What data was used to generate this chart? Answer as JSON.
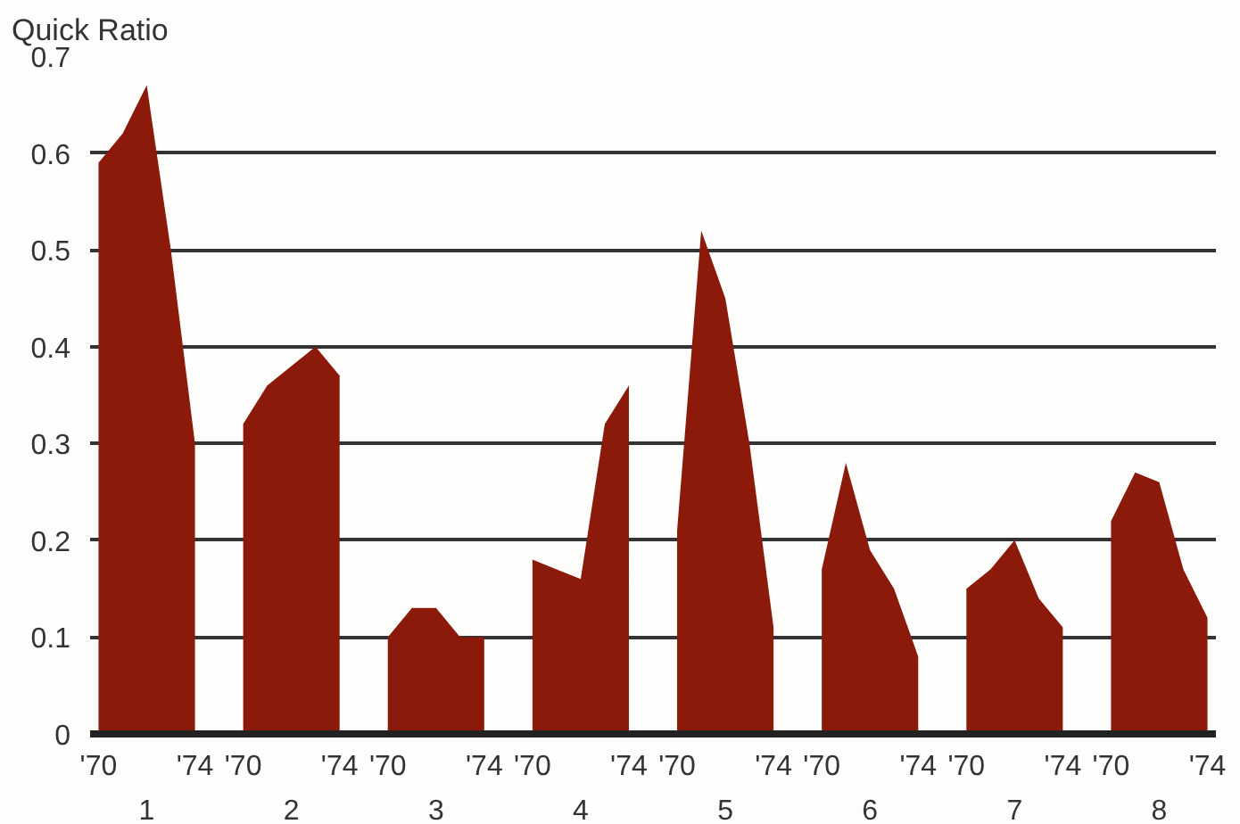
{
  "chart_data": {
    "type": "area",
    "ylabel": "Quick Ratio",
    "categories": [
      "'70",
      null,
      null,
      null,
      "'74",
      "'70",
      null,
      null,
      null,
      "'74",
      "'70",
      null,
      null,
      null,
      "'74",
      "'70",
      null,
      null,
      null,
      "'74",
      "'70",
      null,
      null,
      null,
      "'74",
      "'70",
      null,
      null,
      null,
      "'74",
      "'70",
      null,
      null,
      null,
      "'74",
      "'70",
      null,
      null,
      null,
      "'74"
    ],
    "series": [
      {
        "color": "#8b1a0a",
        "values": [
          0.59,
          0.62,
          0.67,
          0.5,
          0.3,
          null,
          null,
          null,
          null,
          null,
          null,
          null,
          null,
          null,
          null,
          null,
          null,
          null,
          null,
          null,
          null,
          null,
          null,
          null,
          null,
          null,
          null,
          null,
          null,
          null,
          null,
          null,
          null,
          null,
          null,
          null,
          null,
          null,
          null,
          null
        ]
      },
      {
        "color": "#8b1a0a",
        "values": [
          null,
          null,
          null,
          null,
          null,
          0.32,
          0.36,
          0.38,
          0.4,
          0.37,
          null,
          null,
          null,
          null,
          null,
          null,
          null,
          null,
          null,
          null,
          null,
          null,
          null,
          null,
          null,
          null,
          null,
          null,
          null,
          null,
          null,
          null,
          null,
          null,
          null,
          null,
          null,
          null,
          null,
          null
        ]
      },
      {
        "color": "#8b1a0a",
        "values": [
          null,
          null,
          null,
          null,
          null,
          null,
          null,
          null,
          null,
          null,
          0.1,
          0.13,
          0.13,
          0.1,
          0.1,
          null,
          null,
          null,
          null,
          null,
          null,
          null,
          null,
          null,
          null,
          null,
          null,
          null,
          null,
          null,
          null,
          null,
          null,
          null,
          null,
          null,
          null,
          null,
          null,
          null
        ]
      },
      {
        "color": "#8b1a0a",
        "values": [
          null,
          null,
          null,
          null,
          null,
          null,
          null,
          null,
          null,
          null,
          null,
          null,
          null,
          null,
          null,
          0.18,
          0.17,
          0.16,
          0.32,
          0.36,
          null,
          null,
          null,
          null,
          null,
          null,
          null,
          null,
          null,
          null,
          null,
          null,
          null,
          null,
          null,
          null,
          null,
          null,
          null,
          null
        ]
      },
      {
        "color": "#8b1a0a",
        "values": [
          null,
          null,
          null,
          null,
          null,
          null,
          null,
          null,
          null,
          null,
          null,
          null,
          null,
          null,
          null,
          null,
          null,
          null,
          null,
          null,
          0.21,
          0.52,
          0.45,
          0.3,
          0.11,
          null,
          null,
          null,
          null,
          null,
          null,
          null,
          null,
          null,
          null,
          null,
          null,
          null,
          null,
          null
        ]
      },
      {
        "color": "#8b1a0a",
        "values": [
          null,
          null,
          null,
          null,
          null,
          null,
          null,
          null,
          null,
          null,
          null,
          null,
          null,
          null,
          null,
          null,
          null,
          null,
          null,
          null,
          null,
          null,
          null,
          null,
          null,
          0.17,
          0.28,
          0.19,
          0.15,
          0.08,
          null,
          null,
          null,
          null,
          null,
          null,
          null,
          null,
          null,
          null
        ]
      },
      {
        "color": "#8b1a0a",
        "values": [
          null,
          null,
          null,
          null,
          null,
          null,
          null,
          null,
          null,
          null,
          null,
          null,
          null,
          null,
          null,
          null,
          null,
          null,
          null,
          null,
          null,
          null,
          null,
          null,
          null,
          null,
          null,
          null,
          null,
          null,
          0.15,
          0.17,
          0.2,
          0.14,
          0.11,
          null,
          null,
          null,
          null,
          null
        ]
      },
      {
        "color": "#8b1a0a",
        "values": [
          null,
          null,
          null,
          null,
          null,
          null,
          null,
          null,
          null,
          null,
          null,
          null,
          null,
          null,
          null,
          null,
          null,
          null,
          null,
          null,
          null,
          null,
          null,
          null,
          null,
          null,
          null,
          null,
          null,
          null,
          null,
          null,
          null,
          null,
          null,
          0.22,
          0.27,
          0.26,
          0.17,
          0.12
        ]
      }
    ],
    "annotations": [
      "1",
      "2",
      "3",
      "4",
      "5",
      "6",
      "7",
      "8"
    ],
    "ylim": [
      0,
      0.7
    ],
    "yticks": [
      {
        "value": 0,
        "label": "0"
      },
      0.1,
      0.2,
      0.3,
      0.4,
      0.5,
      0.6,
      0.7
    ],
    "grid": "y"
  }
}
